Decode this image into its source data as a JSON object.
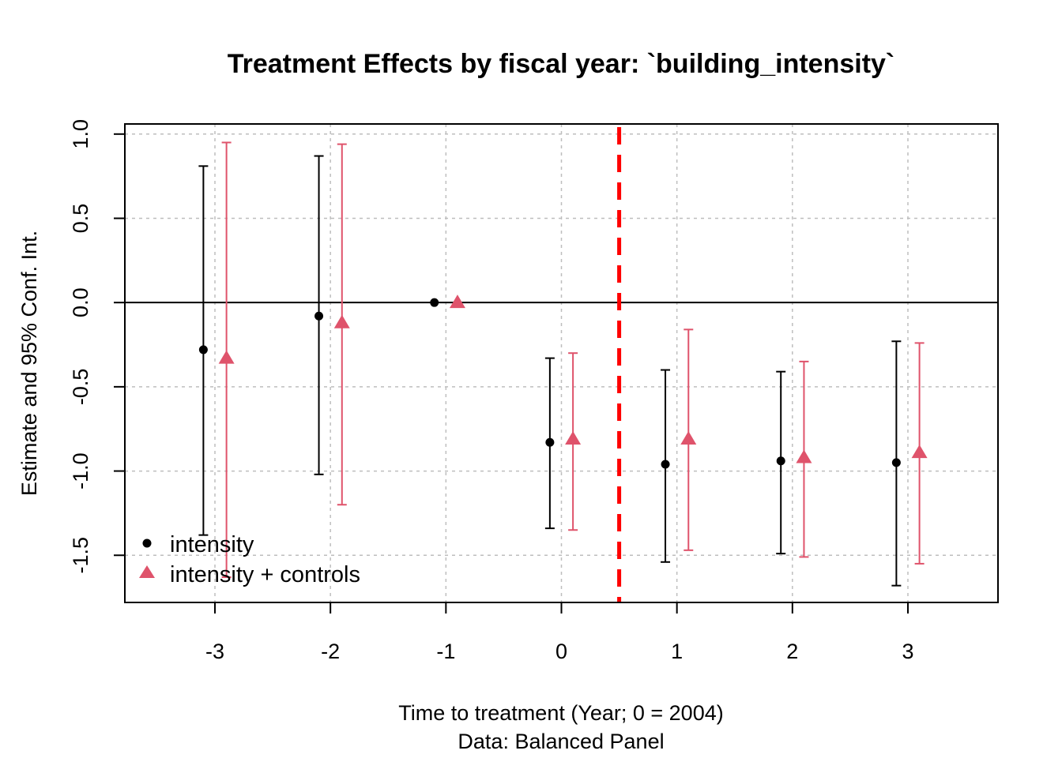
{
  "chart_data": {
    "type": "scatter",
    "title": "Treatment Effects by fiscal year: `building_intensity`",
    "xlabel": "Time to treatment (Year; 0 = 2004)",
    "xlabel2": "Data: Balanced Panel",
    "ylabel": "Estimate and 95% Conf. Int.",
    "x_ticks": [
      "-3",
      "-2",
      "-1",
      "0",
      "1",
      "2",
      "3"
    ],
    "y_ticks": [
      "-1.5",
      "-1.0",
      "-0.5",
      "0.0",
      "0.5",
      "1.0"
    ],
    "y_tick_values": [
      -1.5,
      -1.0,
      -0.5,
      0.0,
      0.5,
      1.0
    ],
    "xlim": [
      -3.78,
      3.78
    ],
    "ylim": [
      -1.78,
      1.06
    ],
    "grid": true,
    "reference_vline": 0.5,
    "reference_hline": 0,
    "legend_position": "bottom-left",
    "series": [
      {
        "name": "intensity",
        "marker": "circle",
        "color": "#000000",
        "points": [
          {
            "x": -3,
            "y": -0.28,
            "lo": -1.38,
            "hi": 0.81
          },
          {
            "x": -2,
            "y": -0.08,
            "lo": -1.02,
            "hi": 0.87
          },
          {
            "x": -1,
            "y": 0.0,
            "lo": null,
            "hi": null
          },
          {
            "x": 0,
            "y": -0.83,
            "lo": -1.34,
            "hi": -0.33
          },
          {
            "x": 1,
            "y": -0.96,
            "lo": -1.54,
            "hi": -0.4
          },
          {
            "x": 2,
            "y": -0.94,
            "lo": -1.49,
            "hi": -0.41
          },
          {
            "x": 3,
            "y": -0.95,
            "lo": -1.68,
            "hi": -0.23
          }
        ]
      },
      {
        "name": "intensity + controls",
        "marker": "triangle",
        "color": "#DF536B",
        "points": [
          {
            "x": -3,
            "y": -0.33,
            "lo": -1.63,
            "hi": 0.95
          },
          {
            "x": -2,
            "y": -0.12,
            "lo": -1.2,
            "hi": 0.94
          },
          {
            "x": -1,
            "y": 0.0,
            "lo": null,
            "hi": null
          },
          {
            "x": 0,
            "y": -0.81,
            "lo": -1.35,
            "hi": -0.3
          },
          {
            "x": 1,
            "y": -0.81,
            "lo": -1.47,
            "hi": -0.16
          },
          {
            "x": 2,
            "y": -0.92,
            "lo": -1.51,
            "hi": -0.35
          },
          {
            "x": 3,
            "y": -0.89,
            "lo": -1.55,
            "hi": -0.24
          }
        ]
      }
    ],
    "colors": {
      "vline": "#FF0000",
      "grid": "#BEBEBE"
    }
  }
}
